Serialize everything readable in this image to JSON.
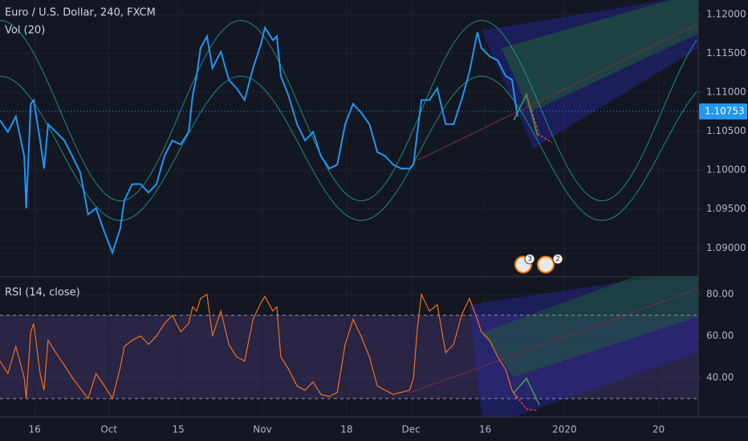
{
  "chart_data": [
    {
      "type": "line",
      "title": "Euro / U.S. Dollar, 240, FXCM",
      "subtitle": "Vol (20)",
      "color": "#2196f3",
      "x": [
        9.0,
        10.6,
        12.2,
        13.9,
        14.3,
        15.2,
        15.8,
        17.1,
        17.9,
        18.7,
        20.3,
        22.0,
        23.6,
        25.2,
        26.8,
        28.4,
        30.1,
        31.7,
        33.3,
        34.1,
        35.7,
        37.4,
        39.0,
        40.6,
        42.2,
        43.8,
        45.5,
        47.1,
        47.9,
        48.7,
        49.5,
        50.8,
        51.9,
        53.6,
        55.2,
        56.8,
        58.4,
        60.1,
        61.7,
        62.5,
        64.1,
        64.9,
        65.7,
        67.3,
        69.0,
        70.6,
        72.2,
        73.8,
        75.5,
        77.1,
        78.7,
        80.3,
        81.9,
        83.6,
        85.2,
        86.8,
        88.4,
        90.0,
        91.7,
        92.5,
        93.3,
        94.1,
        95.7,
        97.3,
        99.0,
        100.6,
        102.2,
        103.8,
        105.4,
        106.2,
        107.9,
        109.5,
        111.1,
        112.4,
        113.5
      ],
      "values": [
        1.1064,
        1.1049,
        1.1069,
        1.1018,
        1.0951,
        1.1085,
        1.109,
        1.1038,
        1.1002,
        1.1059,
        1.1049,
        1.1038,
        1.1018,
        1.0997,
        1.0943,
        1.0951,
        1.092,
        1.0894,
        1.0925,
        1.0961,
        1.0982,
        1.0982,
        1.0971,
        1.0982,
        1.1018,
        1.1038,
        1.1033,
        1.1049,
        1.1095,
        1.1121,
        1.1157,
        1.1172,
        1.1131,
        1.1152,
        1.1116,
        1.1105,
        1.109,
        1.1131,
        1.1162,
        1.1183,
        1.1167,
        1.1172,
        1.1121,
        1.1095,
        1.1059,
        1.1038,
        1.1049,
        1.1018,
        1.1002,
        1.1007,
        1.1059,
        1.1085,
        1.1074,
        1.1059,
        1.1023,
        1.1018,
        1.1007,
        1.1002,
        1.1002,
        1.1007,
        1.1049,
        1.109,
        1.109,
        1.1105,
        1.1059,
        1.1059,
        1.109,
        1.1126,
        1.1177,
        1.1157,
        1.1146,
        1.1141,
        1.1121,
        1.1116,
        1.1069
      ],
      "last_price": 1.10753,
      "events": [
        "3",
        "2"
      ],
      "xlim": [
        9,
        150
      ],
      "ylim": [
        1.08632,
        1.12185
      ],
      "yticks": [
        {
          "value": 1.12,
          "label": "1.12000"
        },
        {
          "value": 1.115,
          "label": "1.11500"
        },
        {
          "value": 1.11,
          "label": "1.11000"
        },
        {
          "value": 1.105,
          "label": "1.10500"
        },
        {
          "value": 1.1,
          "label": "1.10000"
        },
        {
          "value": 1.095,
          "label": "1.09500"
        },
        {
          "value": 1.09,
          "label": "1.09000"
        }
      ],
      "grid": true
    },
    {
      "type": "line",
      "title": "RSI (14, close)",
      "color": "#f0701e",
      "x": [
        9.0,
        10.6,
        12.2,
        13.9,
        14.3,
        15.2,
        15.8,
        17.1,
        17.9,
        18.7,
        20.3,
        22.0,
        23.6,
        25.2,
        26.8,
        28.4,
        30.1,
        31.7,
        33.3,
        34.1,
        35.7,
        37.4,
        39.0,
        40.6,
        42.2,
        43.8,
        45.5,
        47.1,
        47.9,
        48.7,
        49.5,
        50.8,
        51.9,
        53.6,
        55.2,
        56.8,
        58.4,
        60.1,
        61.7,
        62.5,
        64.1,
        64.9,
        65.7,
        67.3,
        69.0,
        70.6,
        72.2,
        73.8,
        75.5,
        77.1,
        78.7,
        80.3,
        81.9,
        83.6,
        85.2,
        86.8,
        88.4,
        90.0,
        91.7,
        92.5,
        93.3,
        94.1,
        95.7,
        97.3,
        99.0,
        100.6,
        102.2,
        103.8,
        105.4,
        106.2,
        107.9,
        109.5,
        111.1,
        112.4,
        113.5
      ],
      "values": [
        48,
        42,
        55,
        40,
        30,
        62,
        66,
        42,
        34,
        58,
        52,
        46,
        40,
        35,
        30,
        42,
        36,
        30,
        45,
        55,
        58,
        60,
        56,
        60,
        66,
        70,
        62,
        66,
        74,
        72,
        78,
        80,
        60,
        72,
        56,
        50,
        48,
        68,
        76,
        79,
        72,
        74,
        50,
        44,
        36,
        34,
        38,
        32,
        31,
        33,
        56,
        68,
        60,
        50,
        36,
        34,
        32,
        33,
        34,
        40,
        64,
        80,
        72,
        75,
        52,
        56,
        70,
        78,
        68,
        62,
        58,
        50,
        44,
        34,
        30
      ],
      "levels": [
        70,
        30
      ],
      "xlim": [
        9,
        150
      ],
      "ylim": [
        21.2,
        88.5
      ],
      "yticks": [
        {
          "value": 80,
          "label": "80.00"
        },
        {
          "value": 60,
          "label": "60.00"
        },
        {
          "value": 40,
          "label": "40.00"
        }
      ],
      "xticks": [
        {
          "value": 16,
          "label": "16"
        },
        {
          "value": 31,
          "label": "Oct"
        },
        {
          "value": 45,
          "label": "15"
        },
        {
          "value": 62,
          "label": "Nov"
        },
        {
          "value": 79,
          "label": "18"
        },
        {
          "value": 92,
          "label": "Dec"
        },
        {
          "value": 107,
          "label": "16"
        },
        {
          "value": 123,
          "label": "2020"
        },
        {
          "value": 142,
          "label": "20"
        }
      ],
      "grid": true
    }
  ]
}
